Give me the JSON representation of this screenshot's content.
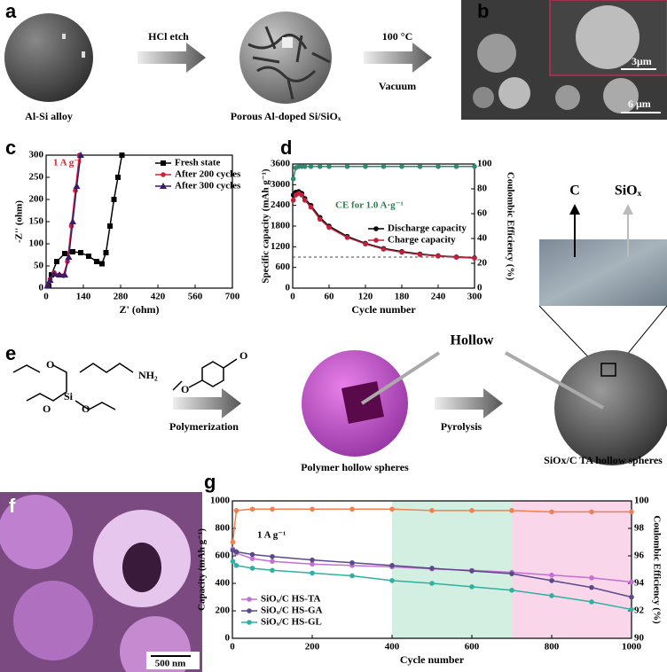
{
  "scheme_a": {
    "label": "a",
    "step1": "HCl etch",
    "step2a": "100 °C",
    "step2b": "Vacuum",
    "start": "Al-Si alloy",
    "end": "Porous Al-doped Si/SiOₓ"
  },
  "sem_b": {
    "label": "b",
    "inset_scale": "3μm",
    "scale": "6 μm"
  },
  "schematic": {
    "c": "C",
    "siox": "SiOₓ"
  },
  "scheme_e": {
    "label": "e",
    "atoms": [
      "O",
      "Si",
      "NH₂",
      "O",
      "O",
      "O",
      "O"
    ],
    "step1": "Polymerization",
    "step2": "Pyrolysis",
    "hollow": "Hollow",
    "product1": "Polymer hollow spheres",
    "product2": "SiOx/C TA hollow spheres"
  },
  "sem_f": {
    "label": "f",
    "scale": "500 nm"
  },
  "chart_data": [
    {
      "type": "line",
      "panel_label": "c",
      "xlabel": "Z' (ohm)",
      "ylabel": "-Z'' (ohm)",
      "annotation": "1 A g⁻¹",
      "annotation_color": "#e0202a",
      "legend": "upper right",
      "xlim": [
        0,
        700
      ],
      "xticks": [
        0,
        140,
        280,
        420,
        560,
        700
      ],
      "ylim": [
        0,
        300
      ],
      "yticks": [
        0,
        50,
        100,
        150,
        200,
        250,
        300
      ],
      "series": [
        {
          "name": "Fresh state",
          "color": "#000000",
          "marker": "square",
          "x": [
            10,
            20,
            40,
            70,
            100,
            130,
            160,
            190,
            210,
            225,
            240,
            255,
            270,
            285
          ],
          "values": [
            5,
            30,
            60,
            78,
            82,
            80,
            72,
            60,
            55,
            80,
            140,
            200,
            250,
            300
          ]
        },
        {
          "name": "After 200 cycles",
          "color": "#d0203a",
          "marker": "circle",
          "x": [
            5,
            15,
            30,
            50,
            65,
            80,
            95,
            110,
            125
          ],
          "values": [
            5,
            20,
            35,
            30,
            28,
            60,
            140,
            220,
            300
          ]
        },
        {
          "name": "After 300 cycles",
          "color": "#3a1a6a",
          "marker": "triangle",
          "x": [
            5,
            15,
            30,
            50,
            70,
            85,
            100,
            115,
            130
          ],
          "values": [
            5,
            18,
            32,
            30,
            30,
            70,
            150,
            230,
            300
          ]
        }
      ]
    },
    {
      "type": "line",
      "panel_label": "d",
      "xlabel": "Cycle number",
      "ylabel": "Specific capacity (mAh g⁻¹)",
      "y2label": "Coulombic Efficiency (%)",
      "annotation": "CE for 1.0 A·g⁻¹",
      "annotation_color": "#2e7d4f",
      "legend": "center right",
      "xlim": [
        0,
        300
      ],
      "xticks": [
        0,
        60,
        120,
        180,
        240,
        300
      ],
      "ylim": [
        0,
        3600
      ],
      "yticks": [
        0,
        600,
        1200,
        1800,
        2400,
        3000,
        3600
      ],
      "y2lim": [
        0,
        100
      ],
      "y2ticks": [
        0,
        20,
        40,
        60,
        80,
        100
      ],
      "hline": 900,
      "x": [
        1,
        5,
        10,
        15,
        20,
        30,
        45,
        60,
        90,
        120,
        150,
        180,
        210,
        240,
        270,
        300
      ],
      "series": [
        {
          "name": "Discharge capacity",
          "color": "#000000",
          "marker": "circle",
          "values": [
            2700,
            2780,
            2800,
            2750,
            2600,
            2400,
            2050,
            1800,
            1500,
            1300,
            1150,
            1060,
            990,
            940,
            905,
            880
          ]
        },
        {
          "name": "Charge capacity",
          "color": "#c0203a",
          "marker": "circle",
          "values": [
            2550,
            2700,
            2750,
            2700,
            2550,
            2350,
            2000,
            1760,
            1470,
            1280,
            1130,
            1040,
            975,
            930,
            895,
            870
          ]
        },
        {
          "color": "#2e8b6f",
          "marker": "circle",
          "axis": "y2",
          "values": [
            88,
            97,
            98,
            98,
            98,
            98,
            98,
            98,
            98,
            98,
            98,
            98,
            98,
            98,
            98,
            98
          ]
        }
      ]
    },
    {
      "type": "line",
      "panel_label": "g",
      "xlabel": "Cycle number",
      "ylabel": "Capacity (mAh g⁻¹)",
      "y2label": "Coulombic Efficiency (%)",
      "annotation": "1 A g⁻¹",
      "annotation_color": "#000000",
      "legend": "lower left",
      "xlim": [
        0,
        1000
      ],
      "xticks": [
        0,
        200,
        400,
        600,
        800,
        1000
      ],
      "ylim": [
        0,
        1000
      ],
      "yticks": [
        0,
        200,
        400,
        600,
        800,
        1000
      ],
      "y2lim": [
        90,
        100
      ],
      "y2ticks": [
        90,
        92,
        94,
        96,
        98,
        100
      ],
      "bands": [
        {
          "from": 400,
          "to": 700,
          "color": "#d2efe2"
        },
        {
          "from": 700,
          "to": 1000,
          "color": "#f9d6ea"
        }
      ],
      "x": [
        1,
        10,
        50,
        100,
        200,
        300,
        400,
        500,
        600,
        700,
        800,
        900,
        1000
      ],
      "series": [
        {
          "name": "SiOₓ/C HS-TA",
          "color": "#c36fd4",
          "marker": "circle",
          "values": [
            650,
            620,
            580,
            560,
            540,
            530,
            520,
            505,
            495,
            480,
            460,
            440,
            410
          ]
        },
        {
          "name": "SiOₓ/C HS-GA",
          "color": "#5a4a8a",
          "marker": "circle",
          "values": [
            640,
            630,
            610,
            595,
            570,
            550,
            530,
            510,
            490,
            470,
            420,
            370,
            300
          ]
        },
        {
          "name": "SiOₓ/C HS-GL",
          "color": "#2fb0a0",
          "marker": "circle",
          "values": [
            560,
            530,
            510,
            495,
            475,
            455,
            420,
            400,
            375,
            350,
            310,
            265,
            210
          ]
        },
        {
          "color": "#f08050",
          "marker": "circle",
          "axis": "y2",
          "values": [
            97,
            99.3,
            99.4,
            99.4,
            99.4,
            99.4,
            99.4,
            99.3,
            99.3,
            99.3,
            99.2,
            99.2,
            99.2
          ]
        }
      ]
    }
  ]
}
